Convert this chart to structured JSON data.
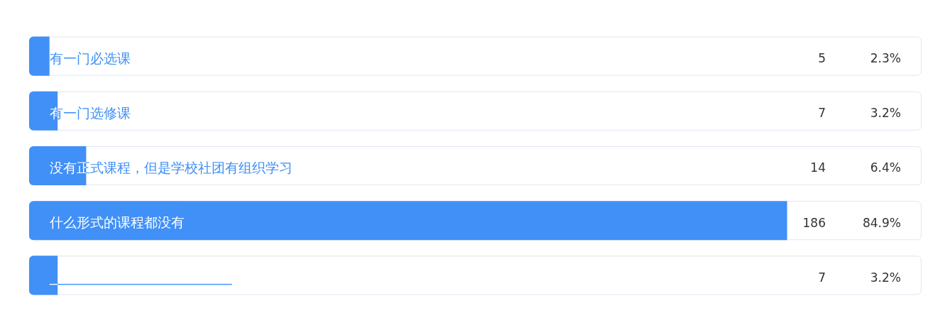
{
  "chart_data": {
    "type": "bar",
    "orientation": "horizontal",
    "categories": [
      "有一门必选课",
      "有一门选修课",
      "没有正式课程，但是学校社团有组织学习",
      "什么形式的课程都没有",
      "___________________________"
    ],
    "values": [
      5,
      7,
      14,
      186,
      7
    ],
    "color": "#4090f7",
    "data_labels": true,
    "annotations": [
      "2.3%",
      "3.2%",
      "6.4%",
      "84.9%",
      "3.2%"
    ]
  }
}
